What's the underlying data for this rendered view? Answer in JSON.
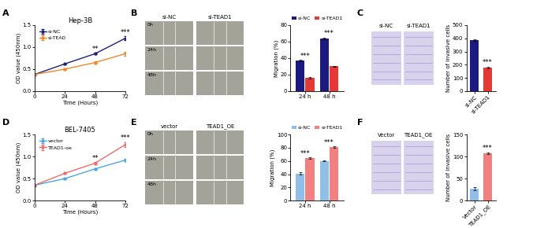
{
  "chart_data": [
    {
      "type": "line",
      "panel": "A",
      "title": "Hep-3B",
      "x_label": "Time (Hours)",
      "y_label": "OD value (450nm)",
      "x": [
        0,
        24,
        48,
        72
      ],
      "xlim": [
        0,
        72
      ],
      "xticks": [
        0,
        24,
        48,
        72
      ],
      "ylim": [
        0,
        1.5
      ],
      "yticks": [
        {
          "value": 0,
          "label": "0.0"
        },
        {
          "value": 0.5,
          "label": "0.5"
        },
        {
          "value": 1.0,
          "label": "1.0"
        },
        {
          "value": 1.5,
          "label": "1.5"
        }
      ],
      "legend": "upper left",
      "marker": "o",
      "series": [
        {
          "name": "si-NC",
          "color": "#1f1f7a",
          "values": [
            0.38,
            0.62,
            0.85,
            1.2
          ],
          "errors": [
            0.01,
            0.01,
            0.02,
            0.04
          ]
        },
        {
          "name": "si-TEAD",
          "color": "#f5872a",
          "values": [
            0.38,
            0.5,
            0.65,
            0.85
          ],
          "errors": [
            0.01,
            0.01,
            0.03,
            0.05
          ]
        }
      ],
      "annotations": [
        {
          "text": "**",
          "x": 48
        },
        {
          "text": "***",
          "x": 72
        }
      ]
    },
    {
      "type": "bar",
      "panel": "B",
      "y_label": "Migration (%)",
      "categories": [
        "24 h",
        "48 h"
      ],
      "ylim": [
        0,
        80
      ],
      "yticks": [
        0,
        20,
        40,
        60,
        80
      ],
      "legend": "top",
      "series": [
        {
          "name": "si-NC",
          "color": "#1a1a80",
          "values": [
            37,
            64
          ],
          "errors": [
            0.6,
            0.8
          ]
        },
        {
          "name": "si-TEAD1",
          "color": "#e53935",
          "values": [
            16,
            30
          ],
          "errors": [
            1.2,
            0.8
          ]
        }
      ],
      "annotations": [
        {
          "text": "***",
          "x": "24 h"
        },
        {
          "text": "***",
          "x": "48 h"
        }
      ]
    },
    {
      "type": "bar",
      "panel": "C",
      "y_label": "Number of invasive cells",
      "categories": [
        "si-NC",
        "si-TEAD1"
      ],
      "ylim": [
        0,
        500
      ],
      "yticks": [
        0,
        100,
        200,
        300,
        400,
        500
      ],
      "values": [
        385,
        178
      ],
      "errors": [
        5,
        6
      ],
      "colors": [
        "#1a1a80",
        "#e53935"
      ],
      "annotations": [
        {
          "text": "***",
          "x": "si-TEAD1"
        }
      ]
    },
    {
      "type": "line",
      "panel": "D",
      "title": "BEL-7405",
      "x_label": "Time (Hours)",
      "y_label": "OD value (450nm)",
      "x": [
        0,
        24,
        48,
        72
      ],
      "xlim": [
        0,
        72
      ],
      "xticks": [
        0,
        24,
        48,
        72
      ],
      "ylim": [
        0,
        1.5
      ],
      "yticks": [
        {
          "value": 0,
          "label": "0.0"
        },
        {
          "value": 0.5,
          "label": "0.5"
        },
        {
          "value": 1.0,
          "label": "1.0"
        },
        {
          "value": 1.5,
          "label": "1.5"
        }
      ],
      "legend": "upper left",
      "marker": "o",
      "series": [
        {
          "name": "vector",
          "color": "#4aa8e0",
          "values": [
            0.35,
            0.5,
            0.72,
            0.92
          ],
          "errors": [
            0.01,
            0.01,
            0.02,
            0.03
          ]
        },
        {
          "name": "TEAD1-oe",
          "color": "#f06a6a",
          "values": [
            0.35,
            0.62,
            0.85,
            1.27
          ],
          "errors": [
            0.01,
            0.01,
            0.02,
            0.05
          ]
        }
      ],
      "annotations": [
        {
          "text": "**",
          "x": 48
        },
        {
          "text": "***",
          "x": 72
        }
      ]
    },
    {
      "type": "bar",
      "panel": "E",
      "y_label": "Migration (%)",
      "categories": [
        "24 h",
        "48 h"
      ],
      "ylim": [
        0,
        100
      ],
      "yticks": [
        0,
        20,
        40,
        60,
        80,
        100
      ],
      "legend": "top",
      "series": [
        {
          "name": "si-NC",
          "color": "#8fbfe8",
          "values": [
            41,
            60
          ],
          "errors": [
            1.5,
            0.8
          ]
        },
        {
          "name": "si-TEAD1",
          "color": "#f28080",
          "values": [
            64,
            81
          ],
          "errors": [
            1.2,
            1.0
          ]
        }
      ],
      "annotations": [
        {
          "text": "***",
          "x": "24 h"
        },
        {
          "text": "***",
          "x": "48 h"
        }
      ]
    },
    {
      "type": "bar",
      "panel": "F",
      "y_label": "Number of invasive cells",
      "categories": [
        "Vector",
        "TEAD1_OE"
      ],
      "ylim": [
        0,
        150
      ],
      "yticks": [
        0,
        50,
        100,
        150
      ],
      "values": [
        27,
        108
      ],
      "errors": [
        3,
        2
      ],
      "colors": [
        "#8fbfe8",
        "#f28080"
      ],
      "annotations": [
        {
          "text": "***",
          "x": "TEAD1_OE"
        }
      ]
    }
  ],
  "images": [
    {
      "type": "image",
      "columns": [
        "si-NC",
        "si-TEAD1"
      ],
      "rows": [
        "0h",
        "24h",
        "48h"
      ]
    },
    {
      "type": "image",
      "columns": [
        "si-NC",
        "si-TEAD1"
      ]
    },
    {
      "type": "image",
      "columns": [
        "vector",
        "TEAD1_OE"
      ],
      "rows": [
        "0h",
        "24h",
        "48h"
      ]
    },
    {
      "type": "image",
      "columns": [
        "Vector",
        "TEAD1_OE"
      ]
    }
  ]
}
